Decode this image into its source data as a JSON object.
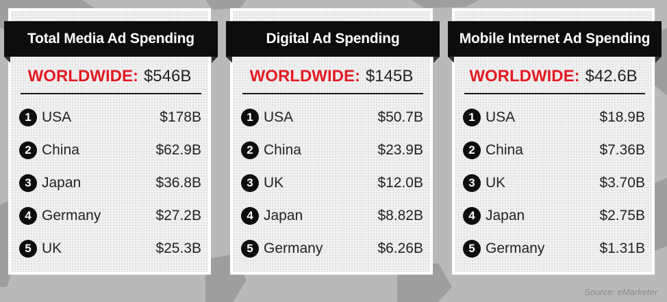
{
  "colors": {
    "accent_red": "#e21b23",
    "banner_black": "#0d0d0d",
    "card_bg": "#f1f1f1",
    "page_bg": "#b9b9b9"
  },
  "panels": [
    {
      "title": "Total Media Ad Spending",
      "worldwide_label": "WORLDWIDE:",
      "worldwide_value": "$546B",
      "rows": [
        {
          "rank": "1",
          "country": "USA",
          "amount": "$178B"
        },
        {
          "rank": "2",
          "country": "China",
          "amount": "$62.9B"
        },
        {
          "rank": "3",
          "country": "Japan",
          "amount": "$36.8B"
        },
        {
          "rank": "4",
          "country": "Germany",
          "amount": "$27.2B"
        },
        {
          "rank": "5",
          "country": "UK",
          "amount": "$25.3B"
        }
      ]
    },
    {
      "title": "Digital Ad Spending",
      "worldwide_label": "WORLDWIDE:",
      "worldwide_value": "$145B",
      "rows": [
        {
          "rank": "1",
          "country": "USA",
          "amount": "$50.7B"
        },
        {
          "rank": "2",
          "country": "China",
          "amount": "$23.9B"
        },
        {
          "rank": "3",
          "country": "UK",
          "amount": "$12.0B"
        },
        {
          "rank": "4",
          "country": "Japan",
          "amount": "$8.82B"
        },
        {
          "rank": "5",
          "country": "Germany",
          "amount": "$6.26B"
        }
      ]
    },
    {
      "title": "Mobile Internet Ad Spending",
      "worldwide_label": "WORLDWIDE:",
      "worldwide_value": "$42.6B",
      "rows": [
        {
          "rank": "1",
          "country": "USA",
          "amount": "$18.9B"
        },
        {
          "rank": "2",
          "country": "China",
          "amount": "$7.36B"
        },
        {
          "rank": "3",
          "country": "UK",
          "amount": "$3.70B"
        },
        {
          "rank": "4",
          "country": "Japan",
          "amount": "$2.75B"
        },
        {
          "rank": "5",
          "country": "Germany",
          "amount": "$1.31B"
        }
      ]
    }
  ],
  "source": "Source: eMarketer"
}
